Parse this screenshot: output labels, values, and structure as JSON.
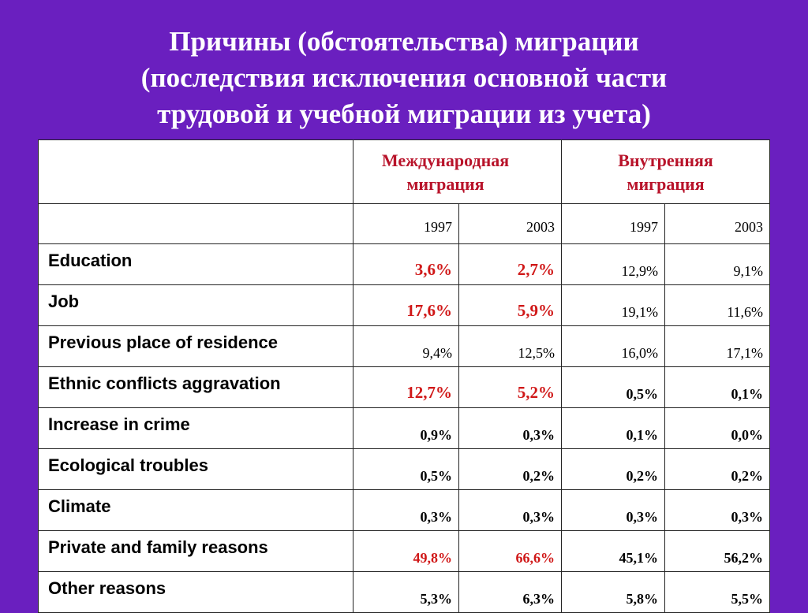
{
  "title": {
    "line1": "Причины (обстоятельства) миграции",
    "line2": "(последствия исключения основной части",
    "line3": "трудовой и учебной миграции из учета)"
  },
  "table": {
    "group_headers": [
      "Международная миграция",
      "Внутренняя миграция"
    ],
    "years": [
      "1997",
      "2003",
      "1997",
      "2003"
    ],
    "rows": [
      {
        "label": "Education",
        "values": [
          "3,6%",
          "2,7%",
          "12,9%",
          "9,1%"
        ]
      },
      {
        "label": "Job",
        "values": [
          "17,6%",
          "5,9%",
          "19,1%",
          "11,6%"
        ]
      },
      {
        "label": "Previous place of residence",
        "values": [
          "9,4%",
          "12,5%",
          "16,0%",
          "17,1%"
        ]
      },
      {
        "label": "Ethnic conflicts aggravation",
        "values": [
          "12,7%",
          "5,2%",
          "0,5%",
          "0,1%"
        ]
      },
      {
        "label": "Increase in crime",
        "values": [
          "0,9%",
          "0,3%",
          "0,1%",
          "0,0%"
        ]
      },
      {
        "label": "Ecological troubles",
        "values": [
          "0,5%",
          "0,2%",
          "0,2%",
          "0,2%"
        ]
      },
      {
        "label": "Climate",
        "values": [
          "0,3%",
          "0,3%",
          "0,3%",
          "0,3%"
        ]
      },
      {
        "label": "Private and family reasons",
        "values": [
          "49,8%",
          "66,6%",
          "45,1%",
          "56,2%"
        ]
      },
      {
        "label": "Other reasons",
        "values": [
          "5,3%",
          "6,3%",
          "5,8%",
          "5,5%"
        ]
      }
    ]
  },
  "colors": {
    "background": "#6a1fbf",
    "highlight": "#d01818",
    "header_text": "#b8132a"
  }
}
